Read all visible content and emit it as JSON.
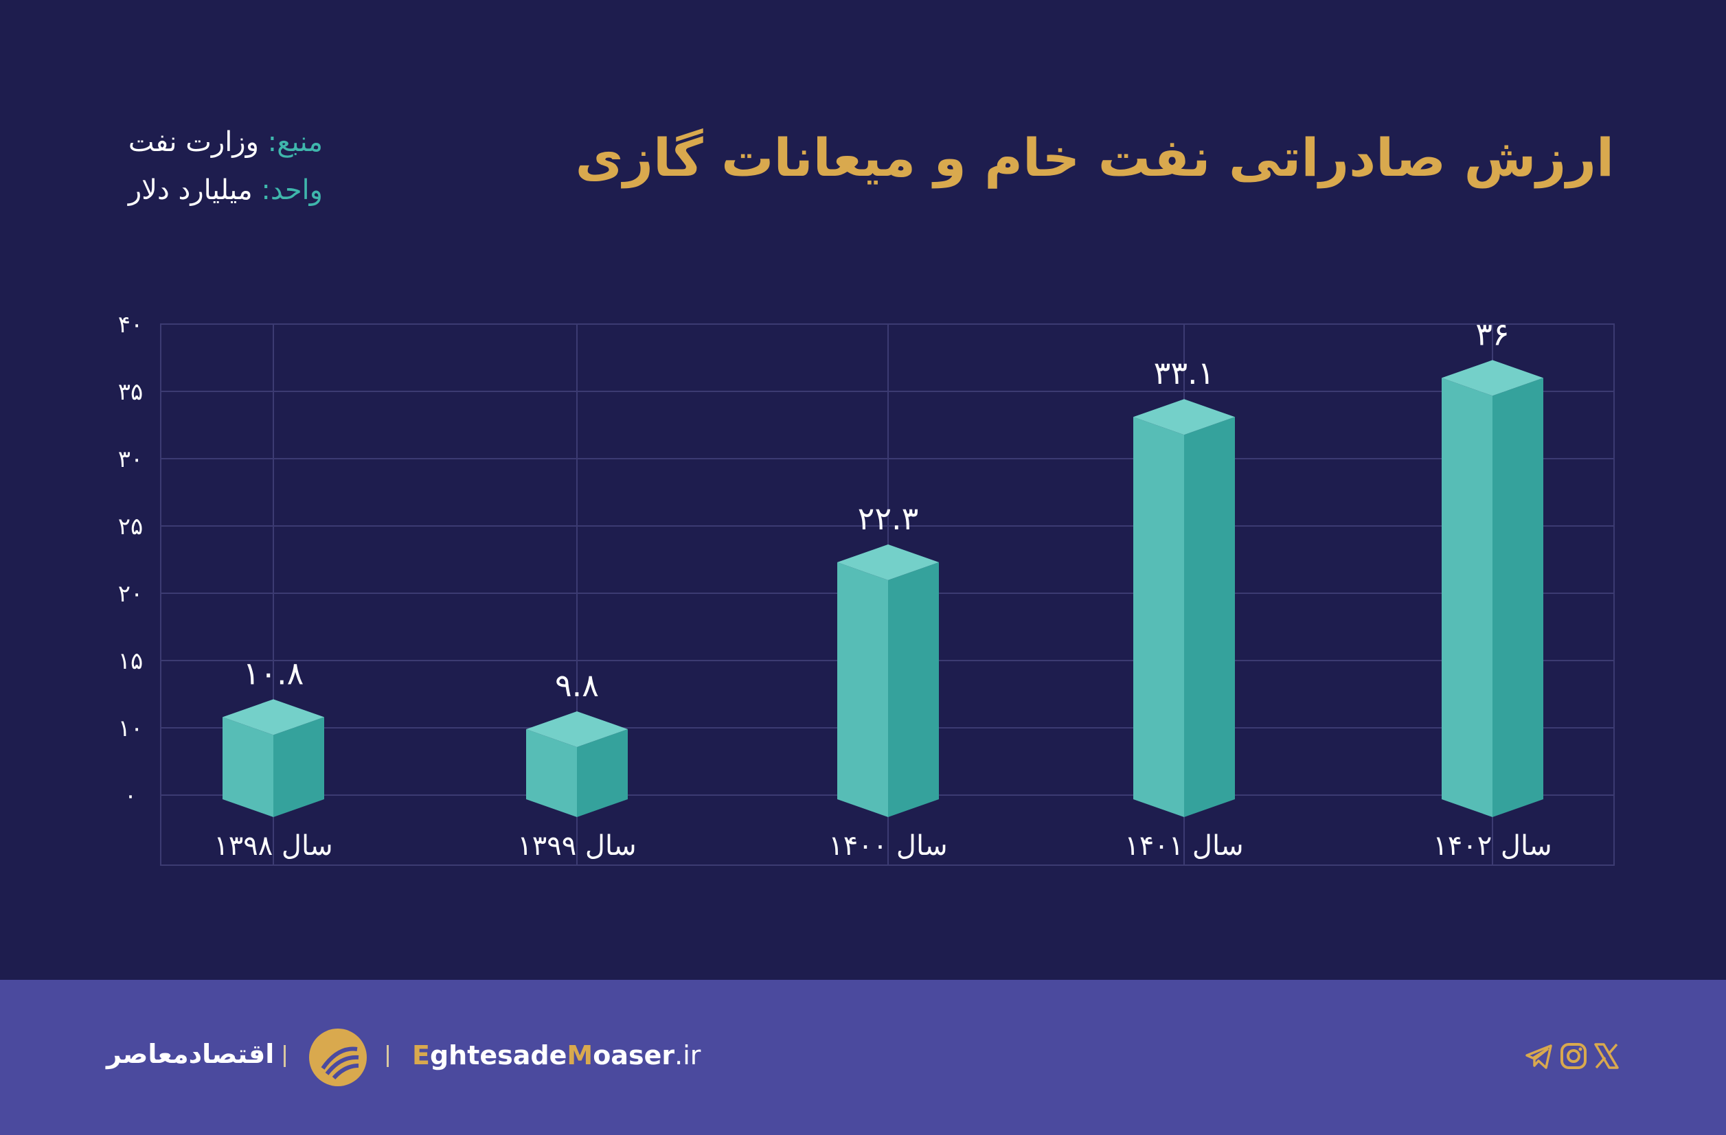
{
  "title": "ارزش صادراتی نفت خام و میعانات گازی",
  "source": {
    "label": "منبع:",
    "value": "وزارت نفت"
  },
  "unit": {
    "label": "واحد:",
    "value": "میلیارد دلار"
  },
  "colors": {
    "background": "#1e1d4e",
    "footer": "#4b4a9e",
    "title": "#d9a94e",
    "accent": "#3fb6ac",
    "bar_front": "#57bdb6",
    "bar_side": "#35a29c",
    "bar_top": "#74d0c9",
    "grid": "#3c3b72"
  },
  "chart_data": {
    "type": "bar",
    "title": "ارزش صادراتی نفت خام و میعانات گازی",
    "ylabel": "میلیارد دلار",
    "xlabel": "",
    "categories": [
      "سال ۱۳۹۸",
      "سال ۱۳۹۹",
      "سال ۱۴۰۰",
      "سال ۱۴۰۱",
      "سال ۱۴۰۲"
    ],
    "values": [
      10.8,
      9.8,
      22.3,
      33.1,
      36
    ],
    "value_labels": [
      "۱۰.۸",
      "۹.۸",
      "۲۲.۳",
      "۳۳.۱",
      "۳۶"
    ],
    "ylim": [
      0,
      40
    ],
    "yticks": [
      0,
      10,
      15,
      20,
      25,
      30,
      35,
      40
    ],
    "ytick_labels": [
      "۰",
      "۱۰",
      "۱۵",
      "۲۰",
      "۲۵",
      "۳۰",
      "۳۵",
      "۴۰"
    ],
    "grid": true,
    "style": "3d-column"
  },
  "footer": {
    "brand": "اقتصادمعاصر",
    "site_parts": [
      "E",
      "ghtesade",
      "M",
      "oaser",
      ".ir"
    ],
    "social_icons": [
      "telegram-icon",
      "instagram-icon",
      "x-icon"
    ]
  }
}
